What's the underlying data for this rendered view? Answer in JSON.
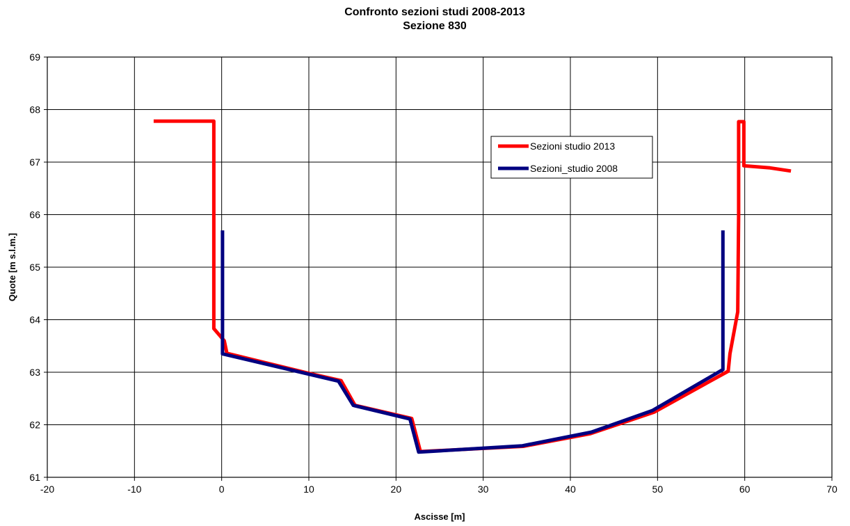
{
  "chart_data": {
    "type": "line",
    "title": "Confronto sezioni studi 2008-2013",
    "subtitle": "Sezione 830",
    "xlabel": "Ascisse [m]",
    "ylabel": "Quote [m s.l.m.]",
    "xlim": [
      -20,
      70
    ],
    "ylim": [
      61,
      69
    ],
    "xticks": [
      "-20",
      "-10",
      "0",
      "10",
      "20",
      "30",
      "40",
      "50",
      "60",
      "70"
    ],
    "yticks": [
      "61",
      "62",
      "63",
      "64",
      "65",
      "66",
      "67",
      "68",
      "69"
    ],
    "grid": true,
    "legend_position": "top-right-inside",
    "series": [
      {
        "name": "Sezioni studio 2013",
        "color": "#ff0000",
        "x": [
          -7.8,
          -0.9,
          -0.9,
          -0.9,
          0.3,
          0.6,
          10,
          13.7,
          15.3,
          21.8,
          22.8,
          34.6,
          42.3,
          49.6,
          58.1,
          58.3,
          59.2,
          59.3,
          59.3,
          59.9,
          59.9,
          62.9,
          65.3
        ],
        "y": [
          67.78,
          67.78,
          65.0,
          63.83,
          63.6,
          63.36,
          62.98,
          62.84,
          62.37,
          62.12,
          61.49,
          61.59,
          61.83,
          62.24,
          63.02,
          63.35,
          64.15,
          66.0,
          67.77,
          67.77,
          66.93,
          66.89,
          66.83
        ]
      },
      {
        "name": "Sezioni_studio 2008",
        "color": "#000080",
        "x": [
          0.1,
          0.1,
          0.1,
          13.4,
          15.1,
          21.6,
          22.6,
          34.5,
          42.4,
          49.4,
          57.5,
          57.5,
          57.5
        ],
        "y": [
          65.7,
          63.6,
          63.35,
          62.83,
          62.37,
          62.11,
          61.48,
          61.6,
          61.86,
          62.27,
          63.05,
          64.0,
          65.7
        ]
      }
    ]
  }
}
